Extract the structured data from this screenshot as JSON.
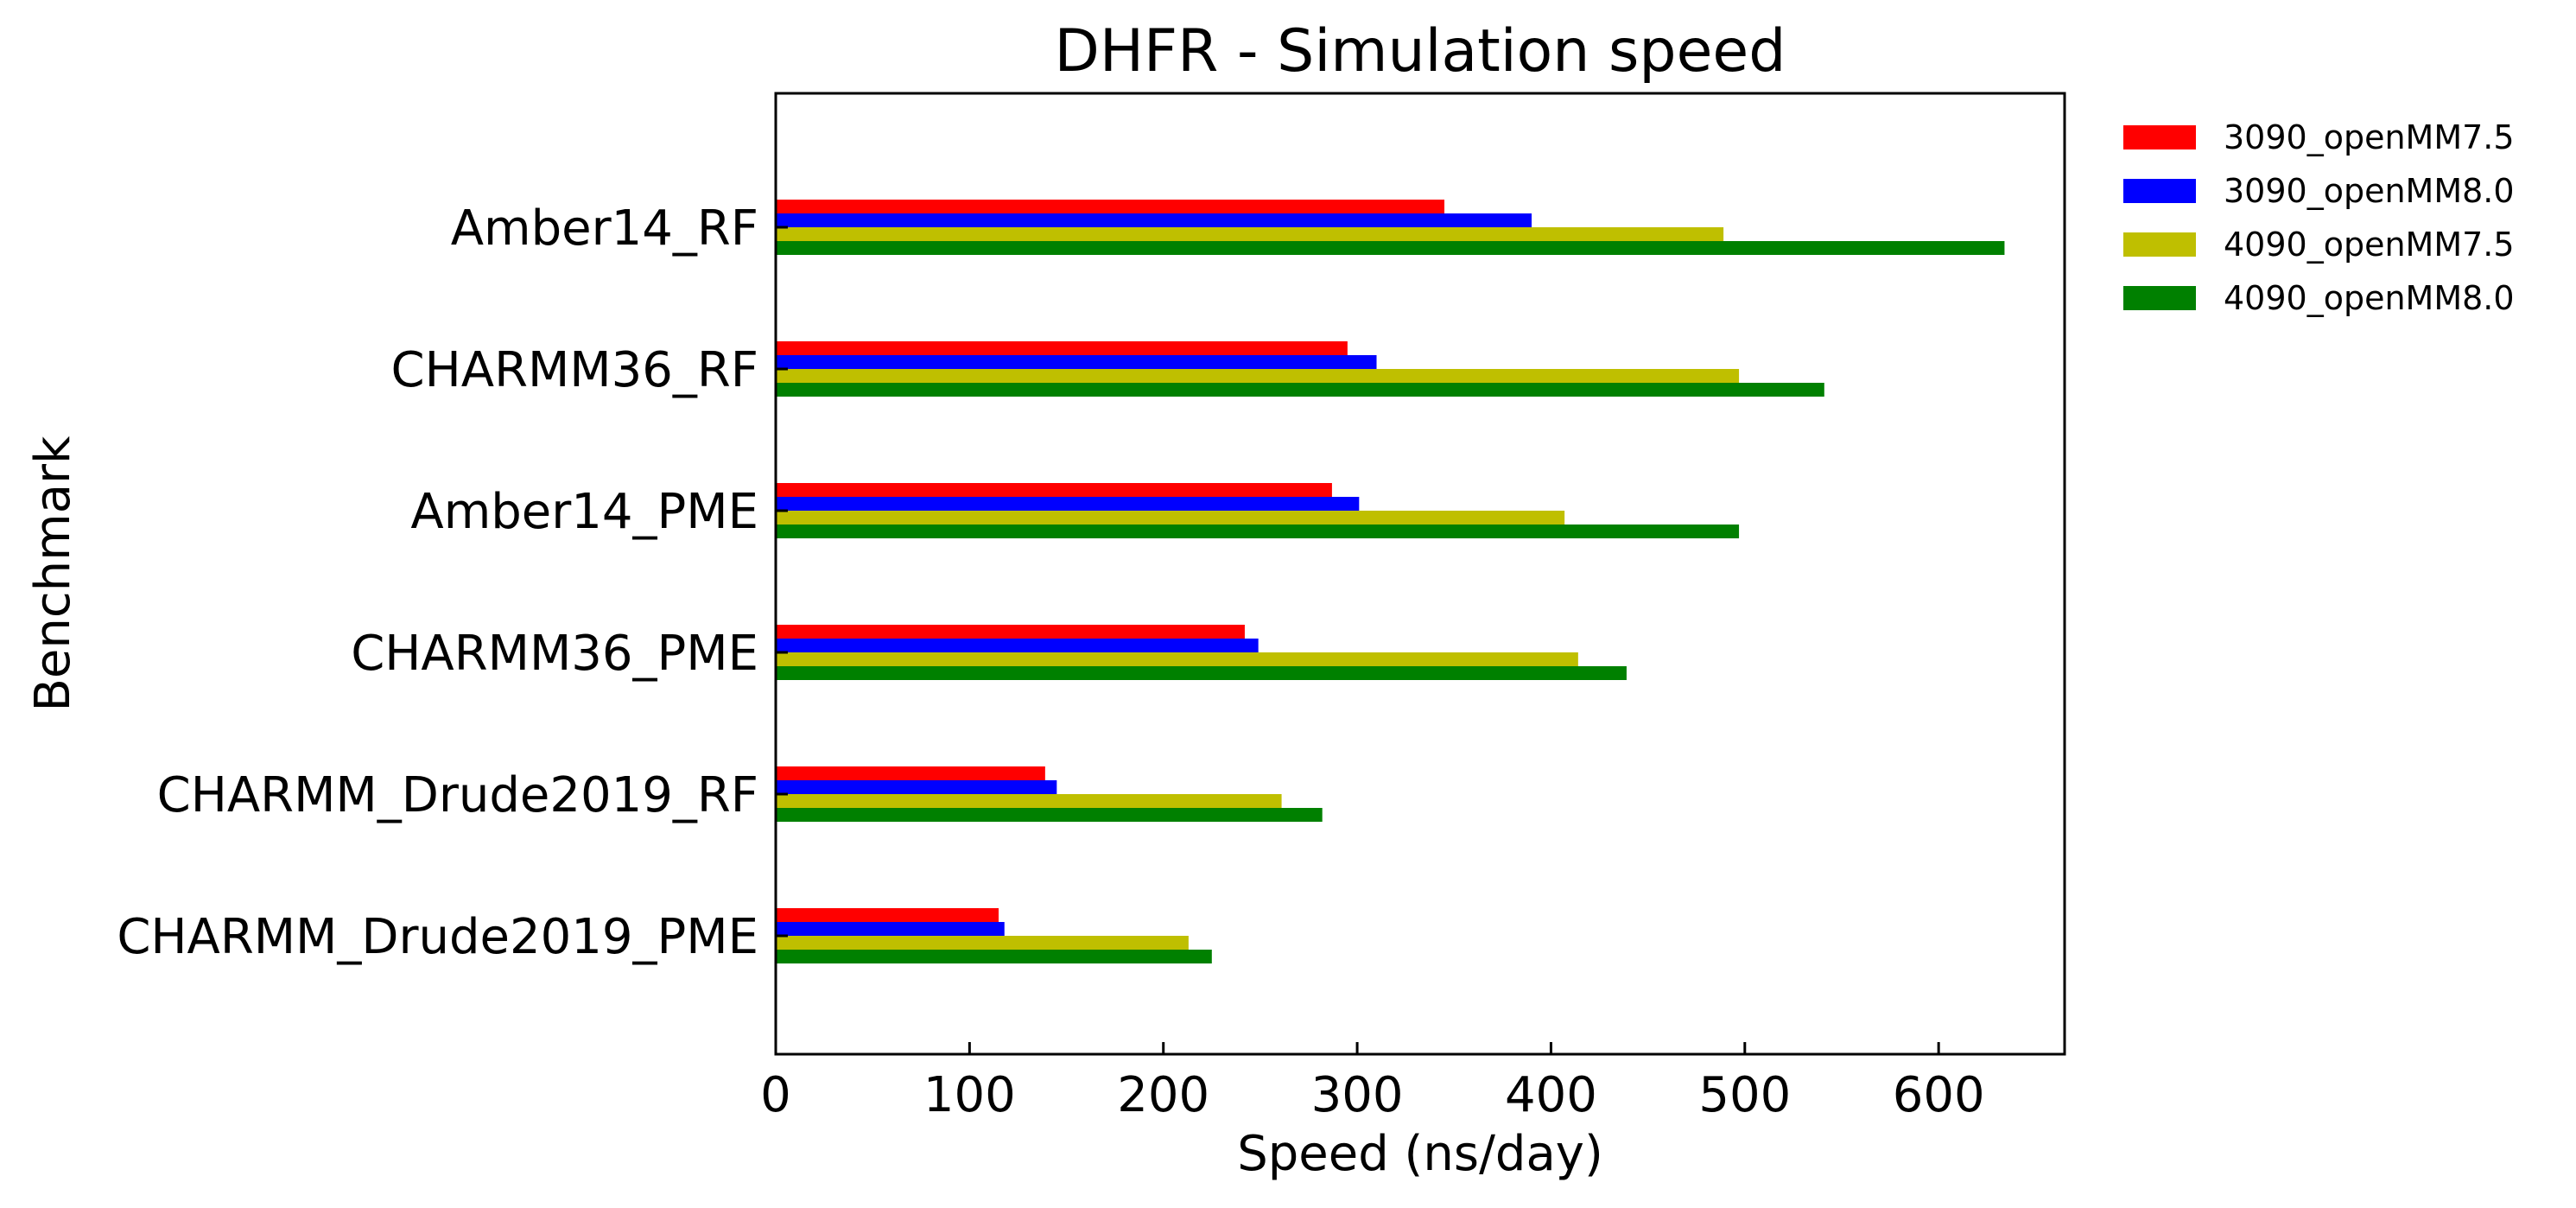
{
  "chart_data": {
    "type": "bar",
    "orientation": "horizontal",
    "title": "DHFR - Simulation speed",
    "xlabel": "Speed (ns/day)",
    "ylabel": "Benchmark",
    "xlim": [
      0,
      665
    ],
    "xticks": [
      0,
      100,
      200,
      300,
      400,
      500,
      600
    ],
    "categories": [
      "Amber14_RF",
      "CHARMM36_RF",
      "Amber14_PME",
      "CHARMM36_PME",
      "CHARMM_Drude2019_RF",
      "CHARMM_Drude2019_PME"
    ],
    "series": [
      {
        "name": "3090_openMM7.5",
        "color": "#ff0000",
        "values": [
          345,
          295,
          287,
          242,
          139,
          115
        ]
      },
      {
        "name": "3090_openMM8.0",
        "color": "#0000ff",
        "values": [
          390,
          310,
          301,
          249,
          145,
          118
        ]
      },
      {
        "name": "4090_openMM7.5",
        "color": "#bfbf00",
        "values": [
          489,
          497,
          407,
          414,
          261,
          213
        ]
      },
      {
        "name": "4090_openMM8.0",
        "color": "#008000",
        "values": [
          634,
          541,
          497,
          439,
          282,
          225
        ]
      }
    ],
    "grid": false,
    "legend_position": "outside-top-right"
  }
}
